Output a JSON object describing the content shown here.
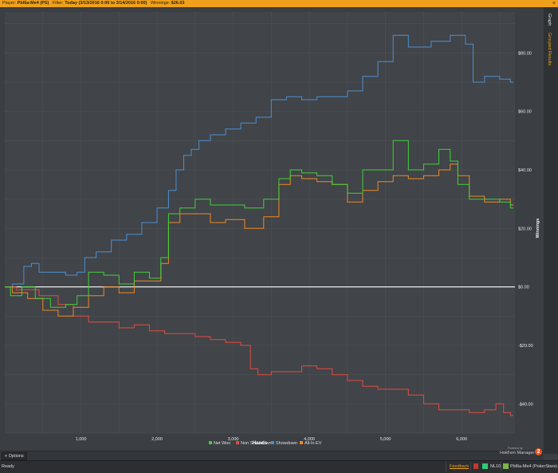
{
  "topbar": {
    "player_label": "Player:",
    "player_value": "Pbl6a-Me4 (PS)",
    "filter_label": "Filter:",
    "filter_value": "Today (3/13/2016 0:00 to 3/14/2016 0:00)",
    "winnings_label": "Winnings:",
    "winnings_value": "$26.03",
    "close_glyph": "×"
  },
  "side_tabs": {
    "graph": "Graph",
    "grouped": "Grouped Results"
  },
  "options": {
    "label": "Options",
    "glyph": "+"
  },
  "logo": {
    "powered": "Powered by",
    "name": "Hold'em Manager",
    "badge": "2"
  },
  "status": {
    "ready": "Ready",
    "feedback": "Feedback",
    "limit": "NL10",
    "player": "Pbl6a-Me4 (PokerStars)"
  },
  "colors": {
    "net_won": "#40d23a",
    "non_showdown": "#e44b43",
    "showdown": "#4a90d4",
    "all_in_ev": "#f08a24",
    "zero_line": "#ffffff"
  },
  "chart_data": {
    "type": "line",
    "xlabel": "Hands",
    "ylabel": "Winnings",
    "xlim": [
      0,
      6700
    ],
    "ylim": [
      -50,
      94
    ],
    "x_ticks": [
      1000,
      2000,
      3000,
      4000,
      5000,
      6000
    ],
    "x_tick_labels": [
      "1,000",
      "2,000",
      "3,000",
      "4,000",
      "5,000",
      "6,000"
    ],
    "y_ticks": [
      80,
      60,
      40,
      20,
      0,
      -20,
      -40
    ],
    "y_tick_labels": [
      "$80.00",
      "$60.00",
      "$40.00",
      "$20.00",
      "$0.00",
      "-$20.00",
      "-$40.00"
    ],
    "grid": true,
    "legend_position": "bottom",
    "series": [
      {
        "name": "Net Won",
        "x": [
          0,
          150,
          300,
          500,
          700,
          900,
          1000,
          1200,
          1400,
          1600,
          1800,
          2000,
          2100,
          2200,
          2400,
          2600,
          2800,
          3000,
          3300,
          3500,
          3700,
          3800,
          4000,
          4200,
          4400,
          4600,
          4800,
          5000,
          5200,
          5400,
          5600,
          5800,
          5900,
          6000,
          6200,
          6400,
          6600,
          6680
        ],
        "values": [
          0,
          -3,
          0,
          -4,
          -7,
          -6,
          -3,
          5,
          4,
          1,
          5,
          3,
          10,
          25,
          27,
          30,
          28,
          28,
          27,
          30,
          37,
          40,
          39,
          38,
          35,
          32,
          40,
          40,
          50,
          40,
          42,
          47,
          43,
          35,
          30,
          30,
          29,
          27
        ]
      },
      {
        "name": "Non Showdown",
        "x": [
          0,
          300,
          600,
          800,
          1000,
          1200,
          1400,
          1600,
          1800,
          2000,
          2200,
          2400,
          2600,
          2800,
          3000,
          3200,
          3250,
          3400,
          3600,
          3800,
          4000,
          4200,
          4400,
          4600,
          4800,
          5000,
          5200,
          5400,
          5600,
          5800,
          6000,
          6200,
          6400,
          6500,
          6600,
          6680
        ],
        "values": [
          0,
          -1,
          -3,
          -6,
          -10,
          -12,
          -12,
          -14,
          -13,
          -15,
          -16,
          -16,
          -17,
          -18,
          -19,
          -20,
          -28,
          -30,
          -29,
          -29,
          -27,
          -28,
          -30,
          -32,
          -34,
          -35,
          -35,
          -37,
          -40,
          -42,
          -42,
          -43,
          -42,
          -40,
          -43,
          -44
        ]
      },
      {
        "name": "Showdown",
        "x": [
          0,
          200,
          300,
          400,
          500,
          700,
          900,
          1000,
          1100,
          1300,
          1500,
          1700,
          1900,
          2100,
          2200,
          2300,
          2400,
          2500,
          2600,
          2800,
          3000,
          3200,
          3400,
          3600,
          3800,
          4000,
          4200,
          4400,
          4600,
          4800,
          5000,
          5200,
          5400,
          5500,
          5700,
          5800,
          5900,
          6000,
          6100,
          6200,
          6400,
          6600,
          6680
        ],
        "values": [
          0,
          1,
          7,
          8,
          5,
          5,
          4,
          5,
          10,
          12,
          16,
          18,
          22,
          27,
          33,
          40,
          45,
          47,
          50,
          52,
          54,
          56,
          58,
          64,
          65,
          64,
          65,
          65,
          67,
          72,
          77,
          86,
          82,
          82,
          84,
          84,
          86,
          86,
          83,
          70,
          72,
          71,
          70
        ]
      },
      {
        "name": "All-In EV",
        "x": [
          0,
          200,
          400,
          600,
          800,
          1000,
          1200,
          1400,
          1600,
          1800,
          2000,
          2100,
          2200,
          2400,
          2600,
          2800,
          3000,
          3300,
          3500,
          3700,
          3800,
          4000,
          4200,
          4400,
          4600,
          4800,
          5000,
          5200,
          5400,
          5600,
          5800,
          5900,
          6000,
          6200,
          6400,
          6600,
          6680
        ],
        "values": [
          0,
          -2,
          -4,
          -8,
          -10,
          -7,
          -3,
          0,
          -2,
          2,
          2,
          8,
          22,
          25,
          25,
          22,
          23,
          20,
          24,
          35,
          38,
          37,
          36,
          35,
          29,
          33,
          36,
          38,
          37,
          38,
          40,
          42,
          38,
          31,
          29,
          30,
          28
        ]
      }
    ]
  }
}
